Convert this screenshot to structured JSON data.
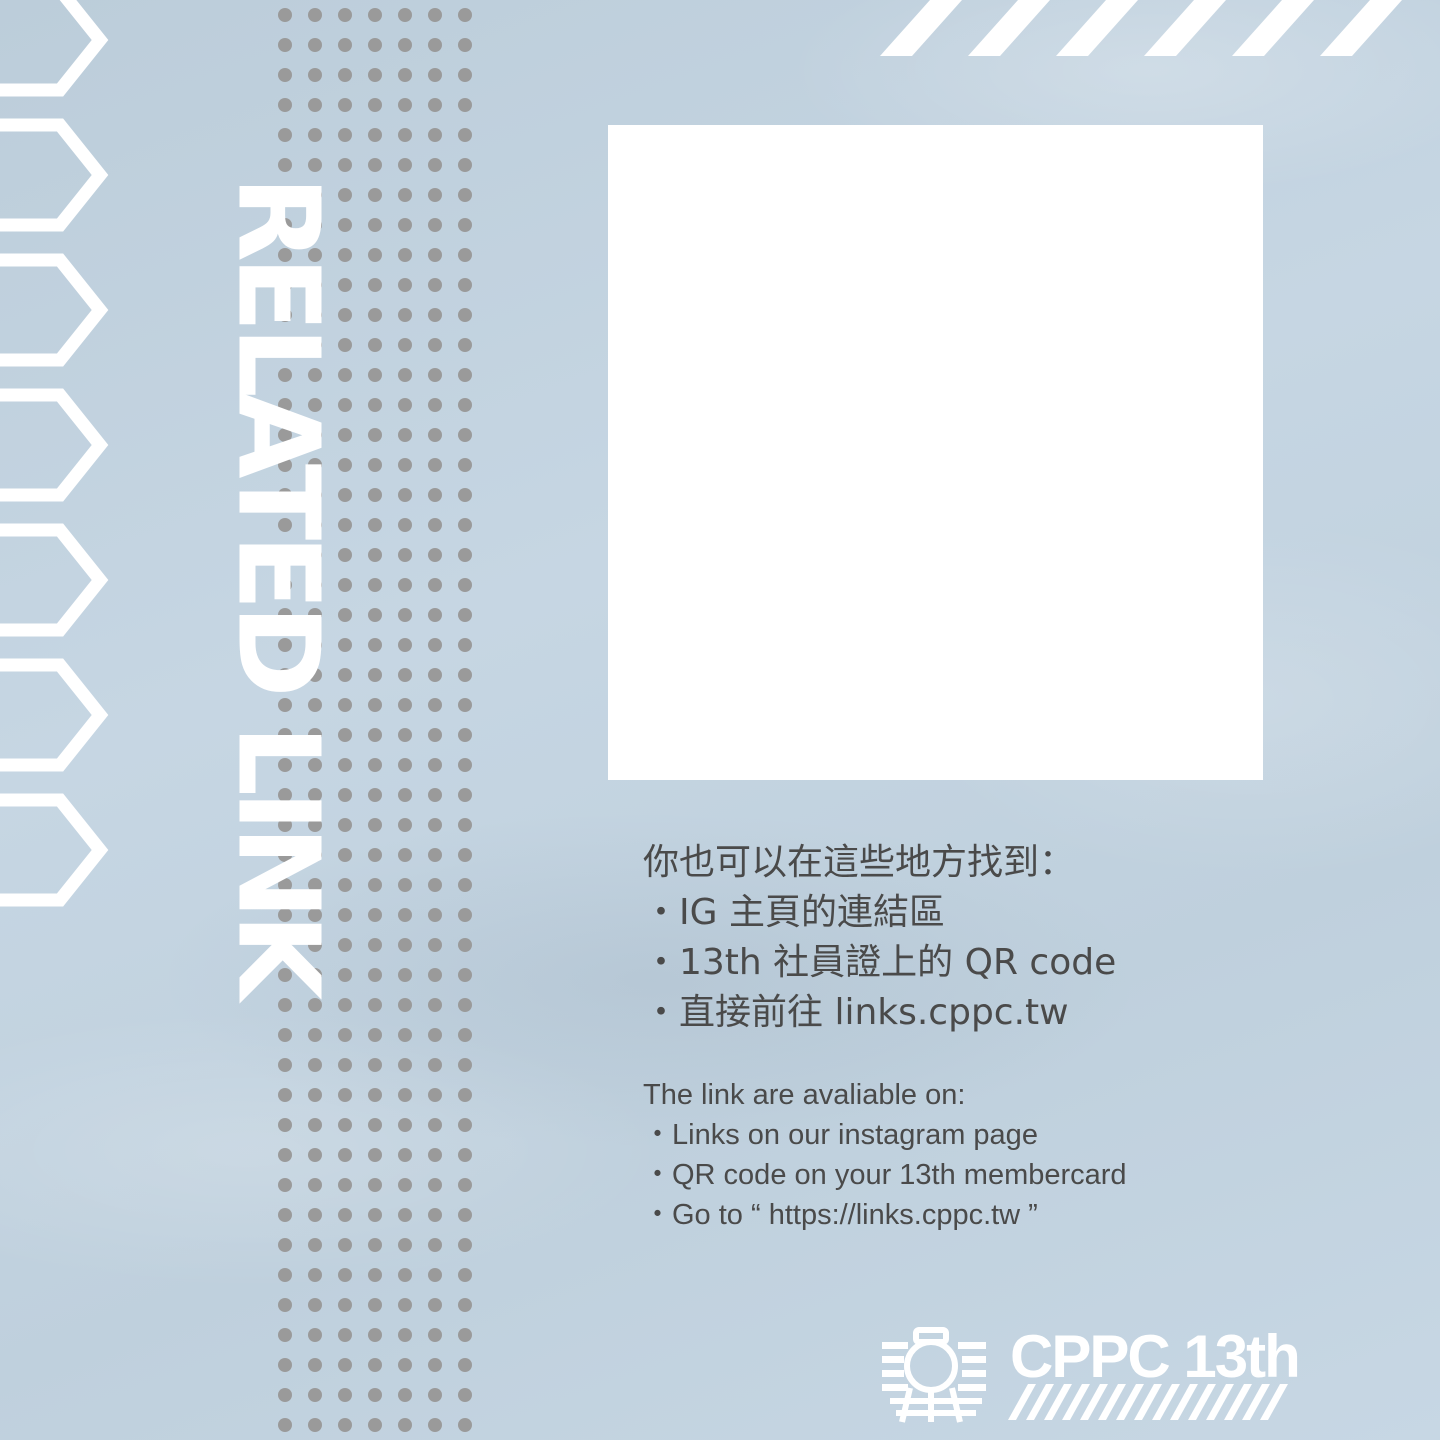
{
  "colors": {
    "background": "#c3d3e0",
    "accent_white": "#ffffff",
    "dots": "#9a9a9a",
    "text": "#4a4a4a"
  },
  "title": "RELATED LINK",
  "zh_section": {
    "heading": "你也可以在這些地方找到：",
    "items": [
      "・IG 主頁的連結區",
      "・13th 社員證上的 QR code",
      "・直接前往 links.cppc.tw"
    ]
  },
  "en_section": {
    "heading": "The link are avaliable on:",
    "items": [
      "・Links on our instagram page",
      "・QR code on your 13th membercard",
      "・Go to “ https://links.cppc.tw ”"
    ]
  },
  "brand": {
    "name": "CPPC 13th",
    "logo_icon": "camera-icon"
  }
}
